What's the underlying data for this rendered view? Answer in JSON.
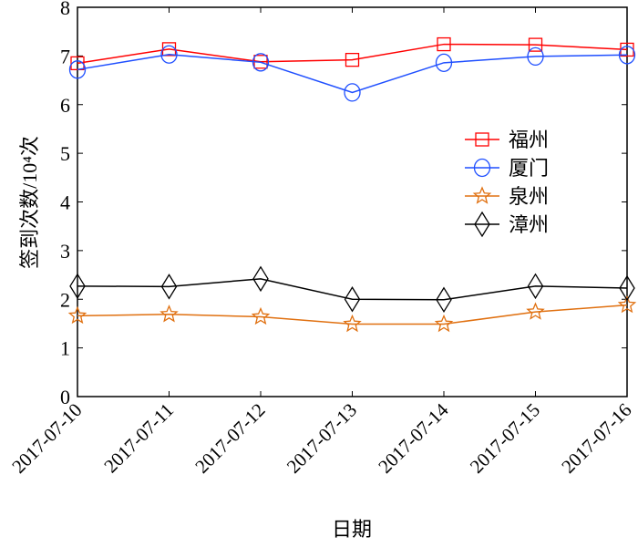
{
  "chart_data": {
    "type": "line",
    "xlabel": "日期",
    "ylabel": "签到次数/10⁴次",
    "ylim": [
      0,
      8
    ],
    "yticks": [
      "0",
      "1",
      "2",
      "3",
      "4",
      "5",
      "6",
      "7",
      "8"
    ],
    "categories": [
      "2017-07-10",
      "2017-07-11",
      "2017-07-12",
      "2017-07-13",
      "2017-07-14",
      "2017-07-15",
      "2017-07-16"
    ],
    "legend_position": "right",
    "grid": false,
    "series": [
      {
        "name": "福州",
        "color": "#ff0000",
        "marker": "square",
        "values": [
          6.85,
          7.14,
          6.88,
          6.92,
          7.24,
          7.23,
          7.13
        ]
      },
      {
        "name": "厦门",
        "color": "#1f4fff",
        "marker": "circle",
        "values": [
          6.72,
          7.03,
          6.87,
          6.25,
          6.86,
          6.99,
          7.02
        ]
      },
      {
        "name": "泉州",
        "color": "#e07010",
        "marker": "star",
        "values": [
          1.66,
          1.69,
          1.64,
          1.49,
          1.49,
          1.74,
          1.88
        ]
      },
      {
        "name": "漳州",
        "color": "#000000",
        "marker": "diamond",
        "values": [
          2.27,
          2.26,
          2.42,
          2.0,
          1.99,
          2.27,
          2.23
        ]
      }
    ]
  }
}
